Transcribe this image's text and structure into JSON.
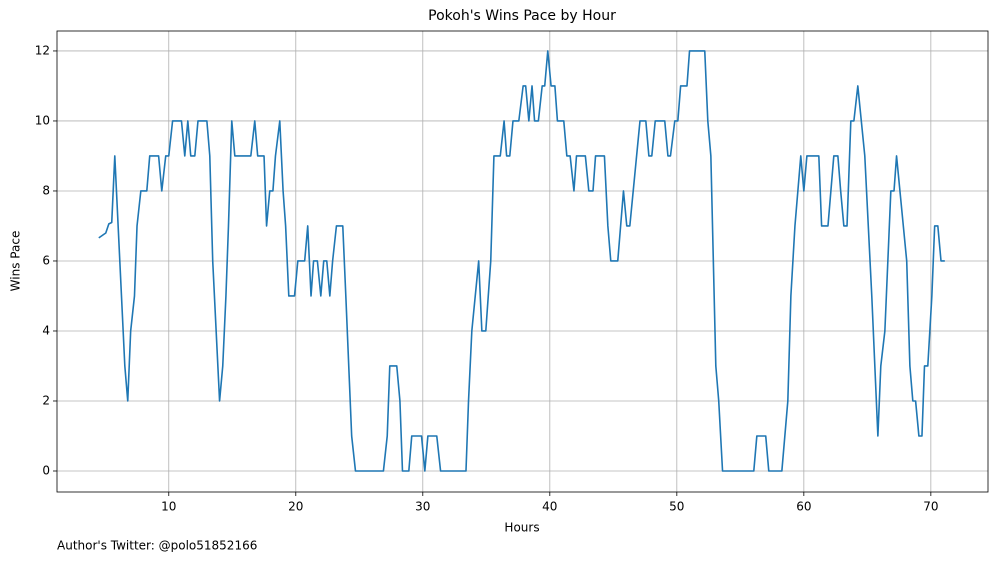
{
  "chart_data": {
    "type": "line",
    "title": "Pokoh's Wins Pace by Hour",
    "x_label": "Hours",
    "y_label": "Wins Pace",
    "footnote": "Author's Twitter: @polo51852166",
    "x": [
      4.49,
      5.04,
      5.28,
      5.51,
      5.75,
      6.54,
      6.77,
      7.0,
      7.3,
      7.5,
      7.8,
      8.27,
      8.5,
      9.2,
      9.45,
      9.76,
      10.0,
      10.3,
      11.0,
      11.26,
      11.5,
      11.73,
      12.05,
      12.3,
      13.0,
      13.23,
      13.46,
      14.0,
      14.25,
      14.5,
      14.7,
      14.96,
      15.2,
      16.46,
      16.77,
      17.0,
      17.5,
      17.7,
      17.95,
      18.2,
      18.4,
      18.74,
      19.0,
      19.2,
      19.45,
      19.9,
      20.16,
      20.7,
      20.94,
      21.2,
      21.4,
      21.7,
      21.97,
      22.2,
      22.44,
      22.68,
      22.9,
      23.2,
      23.7,
      23.94,
      24.4,
      24.7,
      26.9,
      27.2,
      27.4,
      27.95,
      28.2,
      28.4,
      28.9,
      29.13,
      29.9,
      30.16,
      30.4,
      31.1,
      31.4,
      33.4,
      33.6,
      33.86,
      34.4,
      34.65,
      34.96,
      35.35,
      35.6,
      36.1,
      36.4,
      36.6,
      36.85,
      37.1,
      37.56,
      37.9,
      38.1,
      38.35,
      38.6,
      38.8,
      39.1,
      39.4,
      39.6,
      39.84,
      40.1,
      40.4,
      40.6,
      41.1,
      41.34,
      41.6,
      41.9,
      42.1,
      42.8,
      43.07,
      43.4,
      43.6,
      44.3,
      44.57,
      44.8,
      45.35,
      45.8,
      46.06,
      46.3,
      47.1,
      47.56,
      47.8,
      48.03,
      48.3,
      49.05,
      49.3,
      49.5,
      49.84,
      50.08,
      50.3,
      50.8,
      51.0,
      52.2,
      52.44,
      52.68,
      53.07,
      53.3,
      53.6,
      56.06,
      56.3,
      57.0,
      57.24,
      58.27,
      58.74,
      58.98,
      59.3,
      59.76,
      60.0,
      60.24,
      61.18,
      61.4,
      61.9,
      62.36,
      62.68,
      62.9,
      63.15,
      63.4,
      63.7,
      63.94,
      64.25,
      64.8,
      65.35,
      65.83,
      66.06,
      66.38,
      66.85,
      67.1,
      67.3,
      68.1,
      68.35,
      68.58,
      68.8,
      69.06,
      69.3,
      69.5,
      69.76,
      70.08,
      70.3,
      70.55,
      70.8,
      71.1
    ],
    "series": [
      {
        "name": "Wins Pace",
        "color": "#1f77b4",
        "values": [
          6.66,
          6.8,
          7.06,
          7.1,
          9,
          3,
          2,
          4,
          5,
          7,
          8,
          8,
          9,
          9,
          8,
          9,
          9,
          10,
          10,
          9,
          10,
          9,
          9,
          10,
          10,
          9,
          6,
          2,
          3,
          5,
          7,
          10,
          9,
          9,
          10,
          9,
          9,
          7,
          8,
          8,
          9,
          10,
          8,
          7,
          5,
          5,
          6,
          6,
          7,
          5,
          6,
          6,
          5,
          6,
          6,
          5,
          6,
          7,
          7,
          5,
          1,
          0,
          0,
          1,
          3,
          3,
          2,
          0,
          0,
          1,
          1,
          0,
          1,
          1,
          0,
          0,
          2,
          4,
          6,
          4,
          4,
          6,
          9,
          9,
          10,
          9,
          9,
          10,
          10,
          11,
          11,
          10,
          11,
          10,
          10,
          11,
          11,
          12,
          11,
          11,
          10,
          10,
          9,
          9,
          8,
          9,
          9,
          8,
          8,
          9,
          9,
          7,
          6,
          6,
          8,
          7,
          7,
          10,
          10,
          9,
          9,
          10,
          10,
          9,
          9,
          10,
          10,
          11,
          11,
          12,
          12,
          10,
          9,
          3,
          2,
          0,
          0,
          1,
          1,
          0,
          0,
          2,
          5,
          7,
          9,
          8,
          9,
          9,
          7,
          7,
          9,
          9,
          8,
          7,
          7,
          10,
          10,
          11,
          9,
          5,
          1,
          3,
          4,
          8,
          8,
          9,
          6,
          3,
          2,
          2,
          1,
          1,
          3,
          3,
          5,
          7,
          7,
          6,
          6
        ]
      }
    ],
    "xlim": [
      1.2,
      74.5
    ],
    "ylim": [
      -0.6,
      12.57
    ],
    "xticks": [
      10,
      20,
      30,
      40,
      50,
      60,
      70
    ],
    "yticks": [
      0,
      2,
      4,
      6,
      8,
      10,
      12
    ],
    "grid": true
  }
}
